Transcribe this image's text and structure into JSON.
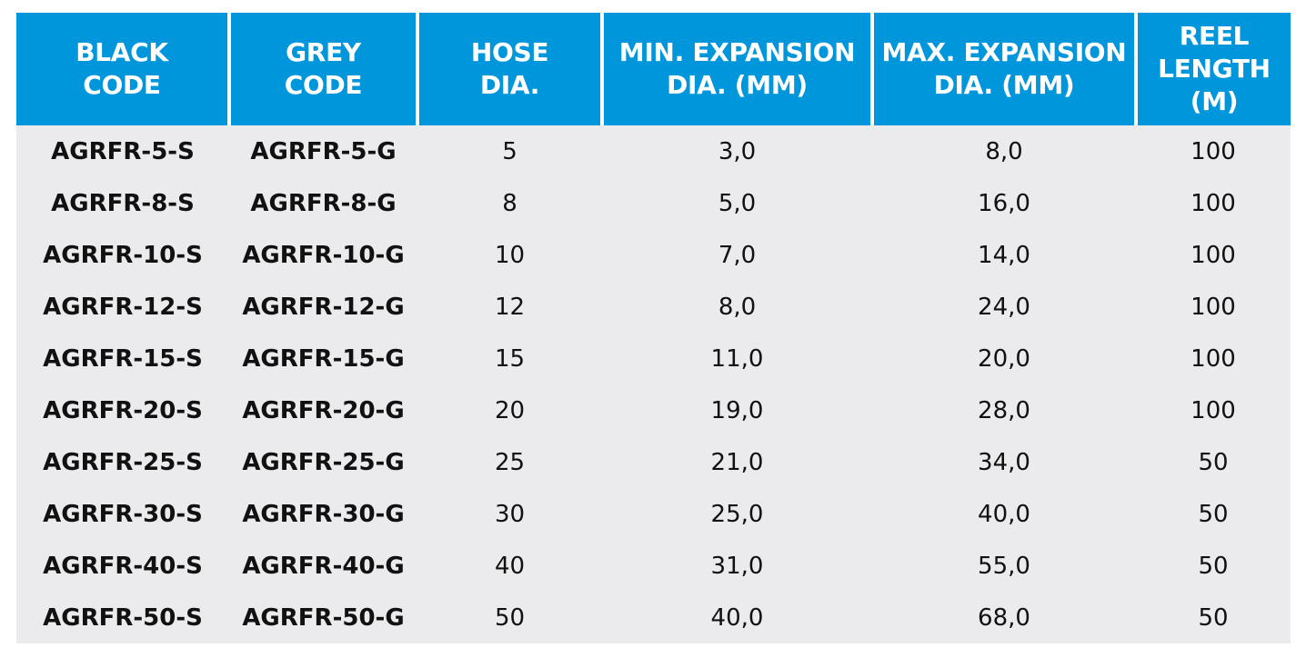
{
  "table": {
    "headers": [
      [
        "BLACK",
        "CODE"
      ],
      [
        "GREY",
        "CODE"
      ],
      [
        "HOSE",
        "DIA."
      ],
      [
        "MIN. EXPANSION",
        "DIA. (MM)"
      ],
      [
        "MAX. EXPANSION",
        "DIA. (MM)"
      ],
      [
        "REEL",
        "LENGTH",
        "(M)"
      ]
    ],
    "rows": [
      [
        "AGRFR-5-S",
        "AGRFR-5-G",
        "5",
        "3,0",
        "8,0",
        "100"
      ],
      [
        "AGRFR-8-S",
        "AGRFR-8-G",
        "8",
        "5,0",
        "16,0",
        "100"
      ],
      [
        "AGRFR-10-S",
        "AGRFR-10-G",
        "10",
        "7,0",
        "14,0",
        "100"
      ],
      [
        "AGRFR-12-S",
        "AGRFR-12-G",
        "12",
        "8,0",
        "24,0",
        "100"
      ],
      [
        "AGRFR-15-S",
        "AGRFR-15-G",
        "15",
        "11,0",
        "20,0",
        "100"
      ],
      [
        "AGRFR-20-S",
        "AGRFR-20-G",
        "20",
        "19,0",
        "28,0",
        "100"
      ],
      [
        "AGRFR-25-S",
        "AGRFR-25-G",
        "25",
        "21,0",
        "34,0",
        "50"
      ],
      [
        "AGRFR-30-S",
        "AGRFR-30-G",
        "30",
        "25,0",
        "40,0",
        "50"
      ],
      [
        "AGRFR-40-S",
        "AGRFR-40-G",
        "40",
        "31,0",
        "55,0",
        "50"
      ],
      [
        "AGRFR-50-S",
        "AGRFR-50-G",
        "50",
        "40,0",
        "68,0",
        "50"
      ]
    ]
  },
  "colors": {
    "header_background": "#0096dc",
    "header_text": "#ffffff",
    "body_background": "#ebebed",
    "body_text": "#111111"
  }
}
